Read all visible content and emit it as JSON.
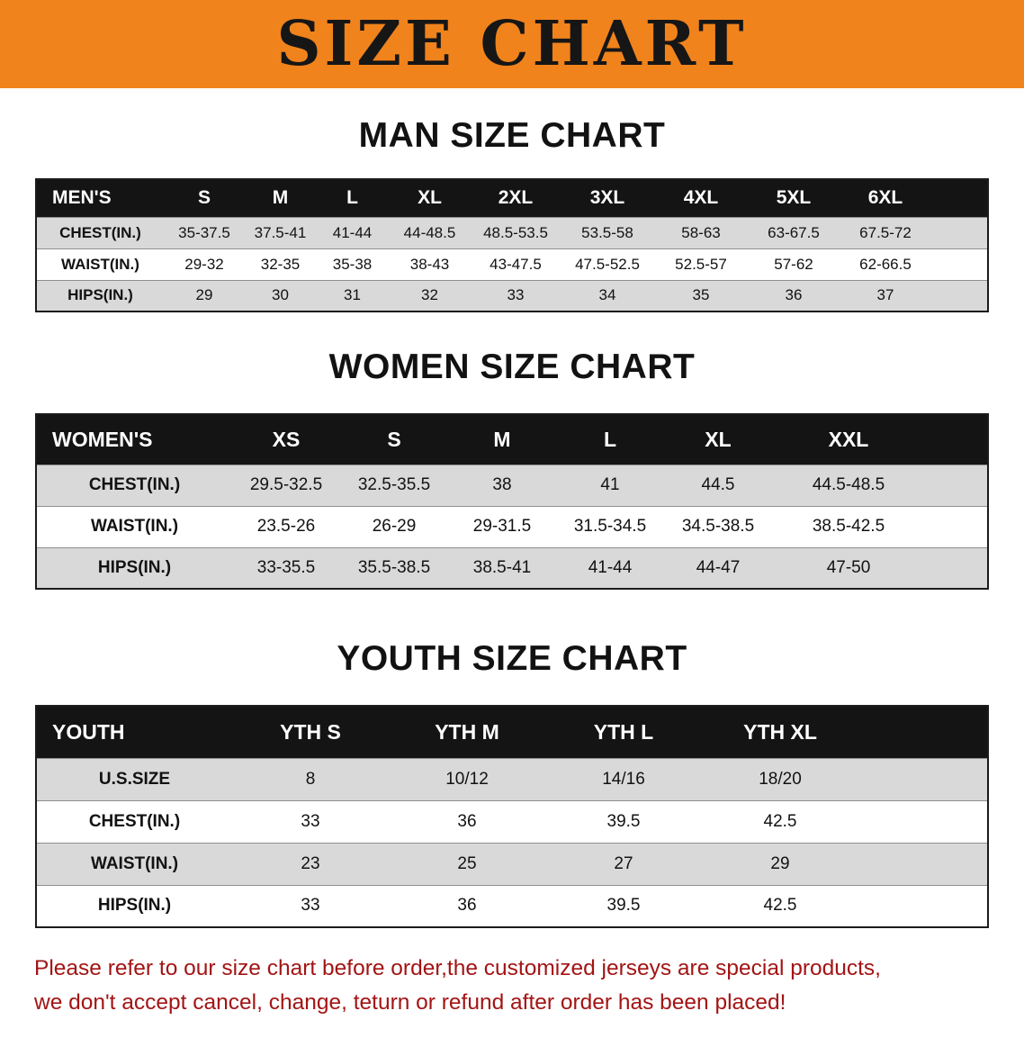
{
  "banner": {
    "title": "SIZE CHART"
  },
  "sections": [
    {
      "id": "men",
      "heading": "MAN SIZE CHART",
      "table": {
        "header": [
          "MEN'S",
          "S",
          "M",
          "L",
          "XL",
          "2XL",
          "3XL",
          "4XL",
          "5XL",
          "6XL"
        ],
        "rows": [
          [
            "CHEST(IN.)",
            "35-37.5",
            "37.5-41",
            "41-44",
            "44-48.5",
            "48.5-53.5",
            "53.5-58",
            "58-63",
            "63-67.5",
            "67.5-72"
          ],
          [
            "WAIST(IN.)",
            "29-32",
            "32-35",
            "35-38",
            "38-43",
            "43-47.5",
            "47.5-52.5",
            "52.5-57",
            "57-62",
            "62-66.5"
          ],
          [
            "HIPS(IN.)",
            "29",
            "30",
            "31",
            "32",
            "33",
            "34",
            "35",
            "36",
            "37"
          ]
        ]
      }
    },
    {
      "id": "women",
      "heading": "WOMEN SIZE CHART",
      "table": {
        "header": [
          "WOMEN'S",
          "XS",
          "S",
          "M",
          "L",
          "XL",
          "XXL"
        ],
        "rows": [
          [
            "CHEST(IN.)",
            "29.5-32.5",
            "32.5-35.5",
            "38",
            "41",
            "44.5",
            "44.5-48.5"
          ],
          [
            "WAIST(IN.)",
            "23.5-26",
            "26-29",
            "29-31.5",
            "31.5-34.5",
            "34.5-38.5",
            "38.5-42.5"
          ],
          [
            "HIPS(IN.)",
            "33-35.5",
            "35.5-38.5",
            "38.5-41",
            "41-44",
            "44-47",
            "47-50"
          ]
        ]
      }
    },
    {
      "id": "youth",
      "heading": "YOUTH SIZE CHART",
      "table": {
        "header": [
          "YOUTH",
          "YTH S",
          "YTH M",
          "YTH L",
          "YTH XL"
        ],
        "rows": [
          [
            "U.S.SIZE",
            "8",
            "10/12",
            "14/16",
            "18/20"
          ],
          [
            "CHEST(IN.)",
            "33",
            "36",
            "39.5",
            "42.5"
          ],
          [
            "WAIST(IN.)",
            "23",
            "25",
            "27",
            "29"
          ],
          [
            "HIPS(IN.)",
            "33",
            "36",
            "39.5",
            "42.5"
          ]
        ]
      }
    }
  ],
  "disclaimer": {
    "line1": "Please refer to our size chart before order,the customized jerseys are special products,",
    "line2": "we don't accept cancel, change, teturn or refund after order has been placed!"
  },
  "colors": {
    "banner-orange": "#f0831c",
    "table-header-black": "#141414",
    "row-gray": "#d9d9d9",
    "disclaimer-red": "#a31414"
  }
}
